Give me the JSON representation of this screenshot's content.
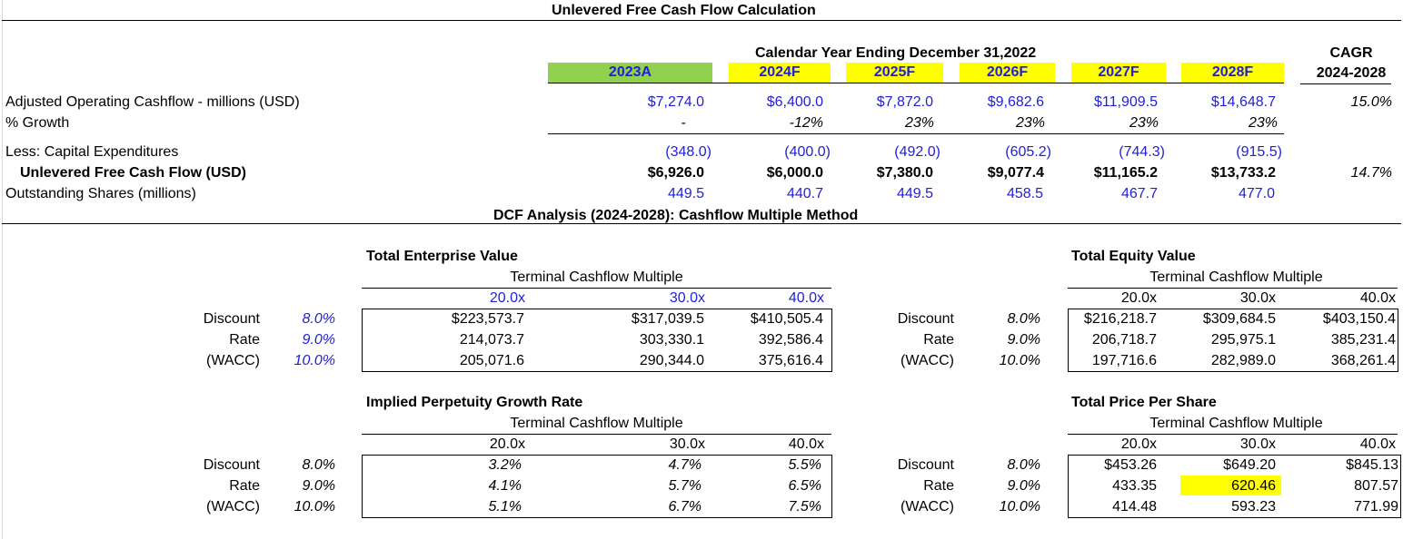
{
  "title": "Unlevered Free Cash Flow Calculation",
  "period_header": "Calendar Year Ending December 31,2022",
  "cagr_header": {
    "line1": "CAGR",
    "line2": "2024-2028"
  },
  "years": [
    "2023A",
    "2024F",
    "2025F",
    "2026F",
    "2027F",
    "2028F"
  ],
  "year_colors": {
    "actual": "#92d050",
    "forecast": "#ffff00"
  },
  "rows": {
    "operating_cashflow": {
      "label": "Adjusted Operating Cashflow - millions (USD)",
      "values": [
        "$7,274.0",
        "$6,400.0",
        "$7,872.0",
        "$9,682.6",
        "$11,909.5",
        "$14,648.7"
      ],
      "cagr": "15.0%"
    },
    "growth": {
      "label": "% Growth",
      "values": [
        "-",
        "-12%",
        "23%",
        "23%",
        "23%",
        "23%"
      ]
    },
    "capex": {
      "label": "Less: Capital Expenditures",
      "values": [
        "(348.0)",
        "(400.0)",
        "(492.0)",
        "(605.2)",
        "(744.3)",
        "(915.5)"
      ]
    },
    "ufcf": {
      "label": "Unlevered Free Cash Flow (USD)",
      "values": [
        "$6,926.0",
        "$6,000.0",
        "$7,380.0",
        "$9,077.4",
        "$11,165.2",
        "$13,733.2"
      ],
      "cagr": "14.7%"
    },
    "shares": {
      "label": "Outstanding Shares (millions)",
      "values": [
        "449.5",
        "440.7",
        "449.5",
        "458.5",
        "467.7",
        "477.0"
      ]
    }
  },
  "dcf_title": "DCF Analysis (2024-2028):  Cashflow Multiple Method",
  "row_labels": [
    "Discount",
    "Rate",
    "(WACC)"
  ],
  "rates": [
    "8.0%",
    "9.0%",
    "10.0%"
  ],
  "multiples_header": "Terminal Cashflow Multiple",
  "multiples": [
    "20.0x",
    "30.0x",
    "40.0x"
  ],
  "tables": {
    "tev": {
      "title": "Total Enterprise Value",
      "rows": [
        [
          "$223,573.7",
          "$317,039.5",
          "$410,505.4"
        ],
        [
          "214,073.7",
          "303,330.1",
          "392,586.4"
        ],
        [
          "205,071.6",
          "290,344.0",
          "375,616.4"
        ]
      ]
    },
    "equity": {
      "title": "Total Equity Value",
      "rows": [
        [
          "$216,218.7",
          "$309,684.5",
          "$403,150.4"
        ],
        [
          "206,718.7",
          "295,975.1",
          "385,231.4"
        ],
        [
          "197,716.6",
          "282,989.0",
          "368,261.4"
        ]
      ]
    },
    "growth": {
      "title": "Implied Perpetuity Growth Rate",
      "rows": [
        [
          "3.2%",
          "4.7%",
          "5.5%"
        ],
        [
          "4.1%",
          "5.7%",
          "6.5%"
        ],
        [
          "5.1%",
          "6.7%",
          "7.5%"
        ]
      ]
    },
    "price": {
      "title": "Total Price Per Share",
      "rows": [
        [
          "$453.26",
          "$649.20",
          "$845.13"
        ],
        [
          "433.35",
          "620.46",
          "807.57"
        ],
        [
          "414.48",
          "593.23",
          "771.99"
        ]
      ],
      "highlight_color": "#ffff00"
    }
  }
}
